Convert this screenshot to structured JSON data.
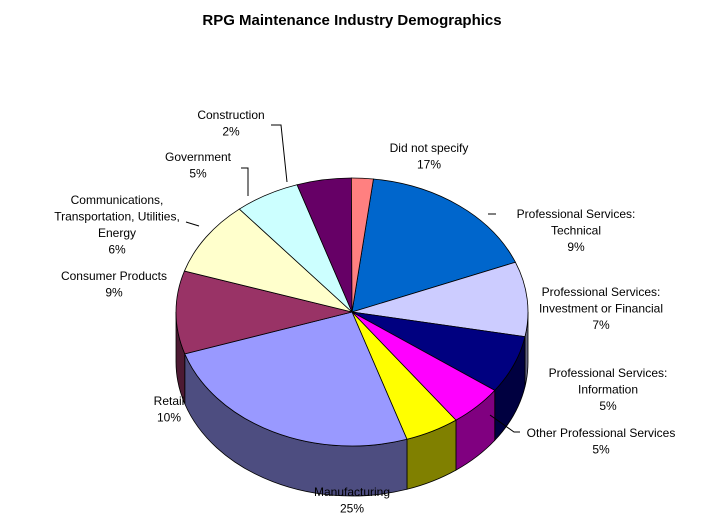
{
  "chart_data": {
    "type": "pie",
    "title": "RPG Maintenance Industry Demographics",
    "slices": [
      {
        "label": "Did not specify",
        "value": 17,
        "value_label": "17%",
        "color": "#0066CC"
      },
      {
        "label": "Professional Services: Technical",
        "value": 9,
        "value_label": "9%",
        "color": "#CCCCFF"
      },
      {
        "label": "Professional Services: Investment or Financial",
        "value": 7,
        "value_label": "7%",
        "color": "#000080"
      },
      {
        "label": "Professional Services: Information",
        "value": 5,
        "value_label": "5%",
        "color": "#FF00FF"
      },
      {
        "label": "Other Professional Services",
        "value": 5,
        "value_label": "5%",
        "color": "#FFFF00"
      },
      {
        "label": "Manufacturing",
        "value": 25,
        "value_label": "25%",
        "color": "#9999FF"
      },
      {
        "label": "Retail",
        "value": 10,
        "value_label": "10%",
        "color": "#993366"
      },
      {
        "label": "Consumer Products",
        "value": 9,
        "value_label": "9%",
        "color": "#FFFFCC"
      },
      {
        "label": "Communications, Transportation, Utilities, Energy",
        "value": 6,
        "value_label": "6%",
        "color": "#CCFFFF"
      },
      {
        "label": "Government",
        "value": 5,
        "value_label": "5%",
        "color": "#660066"
      },
      {
        "label": "Construction",
        "value": 2,
        "value_label": "2%",
        "color": "#FF8080"
      }
    ],
    "style": "3d-pie",
    "legend": "none"
  }
}
